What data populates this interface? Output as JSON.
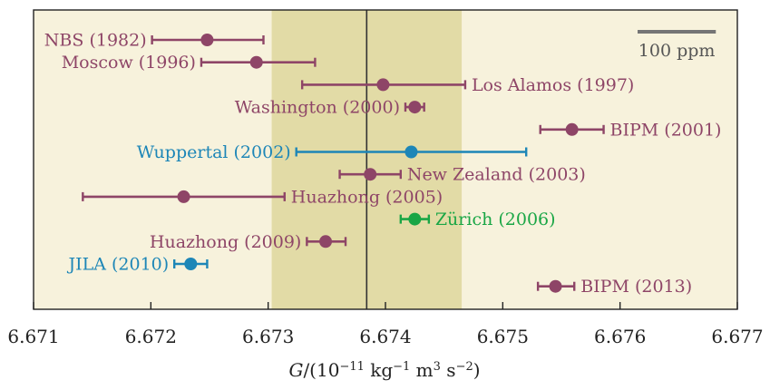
{
  "chart_data": {
    "type": "scatter",
    "title": "",
    "xlabel": "G/(10⁻¹¹ kg⁻¹ m³ s⁻²)",
    "xlabel_parts": [
      "G",
      "/(10",
      "−11",
      " kg",
      "−1",
      " m",
      "3",
      " s",
      "−2",
      ")"
    ],
    "ylabel": "",
    "xlim": [
      6.671,
      6.677
    ],
    "xticks": [
      6.671,
      6.672,
      6.673,
      6.674,
      6.675,
      6.676,
      6.677
    ],
    "tick_labels": [
      "6.671",
      "6.672",
      "6.673",
      "6.674",
      "6.675",
      "6.676",
      "6.677"
    ],
    "grid": false,
    "recommended_value": 6.67384,
    "recommended_band": [
      6.67303,
      6.67465
    ],
    "scale_bar": {
      "label": "100 ppm",
      "length": 0.000667
    },
    "colors": {
      "background": "#f7f2dc",
      "band": "#e2dba6",
      "purple": "#8e4567",
      "blue": "#1d86b7",
      "green": "#19a645",
      "scale": "#757575"
    },
    "points": [
      {
        "label": "NBS (1982)",
        "value": 6.67248,
        "low": 6.67201,
        "high": 6.67296,
        "color": "purple",
        "label_side": "left"
      },
      {
        "label": "Moscow (1996)",
        "value": 6.6729,
        "low": 6.67243,
        "high": 6.6734,
        "color": "purple",
        "label_side": "left"
      },
      {
        "label": "Los Alamos (1997)",
        "value": 6.67398,
        "low": 6.67329,
        "high": 6.67468,
        "color": "purple",
        "label_side": "right"
      },
      {
        "label": "Washington (2000)",
        "value": 6.67425,
        "low": 6.67417,
        "high": 6.67433,
        "color": "purple",
        "label_side": "left"
      },
      {
        "label": "BIPM (2001)",
        "value": 6.67559,
        "low": 6.67532,
        "high": 6.67586,
        "color": "purple",
        "label_side": "right"
      },
      {
        "label": "Wuppertal (2002)",
        "value": 6.67422,
        "low": 6.67324,
        "high": 6.6752,
        "color": "blue",
        "label_side": "left"
      },
      {
        "label": "New Zealand (2003)",
        "value": 6.67387,
        "low": 6.67361,
        "high": 6.67413,
        "color": "purple",
        "label_side": "right"
      },
      {
        "label": "Huazhong (2005)",
        "value": 6.67228,
        "low": 6.67142,
        "high": 6.67314,
        "color": "purple",
        "label_side": "right"
      },
      {
        "label": "Zürich (2006)",
        "value": 6.67425,
        "low": 6.67413,
        "high": 6.67437,
        "color": "green",
        "label_side": "right"
      },
      {
        "label": "Huazhong (2009)",
        "value": 6.67349,
        "low": 6.67333,
        "high": 6.67366,
        "color": "purple",
        "label_side": "left"
      },
      {
        "label": "JILA (2010)",
        "value": 6.67234,
        "low": 6.6722,
        "high": 6.67248,
        "color": "blue",
        "label_side": "left"
      },
      {
        "label": "BIPM (2013)",
        "value": 6.67545,
        "low": 6.6753,
        "high": 6.67561,
        "color": "purple",
        "label_side": "right"
      }
    ]
  }
}
